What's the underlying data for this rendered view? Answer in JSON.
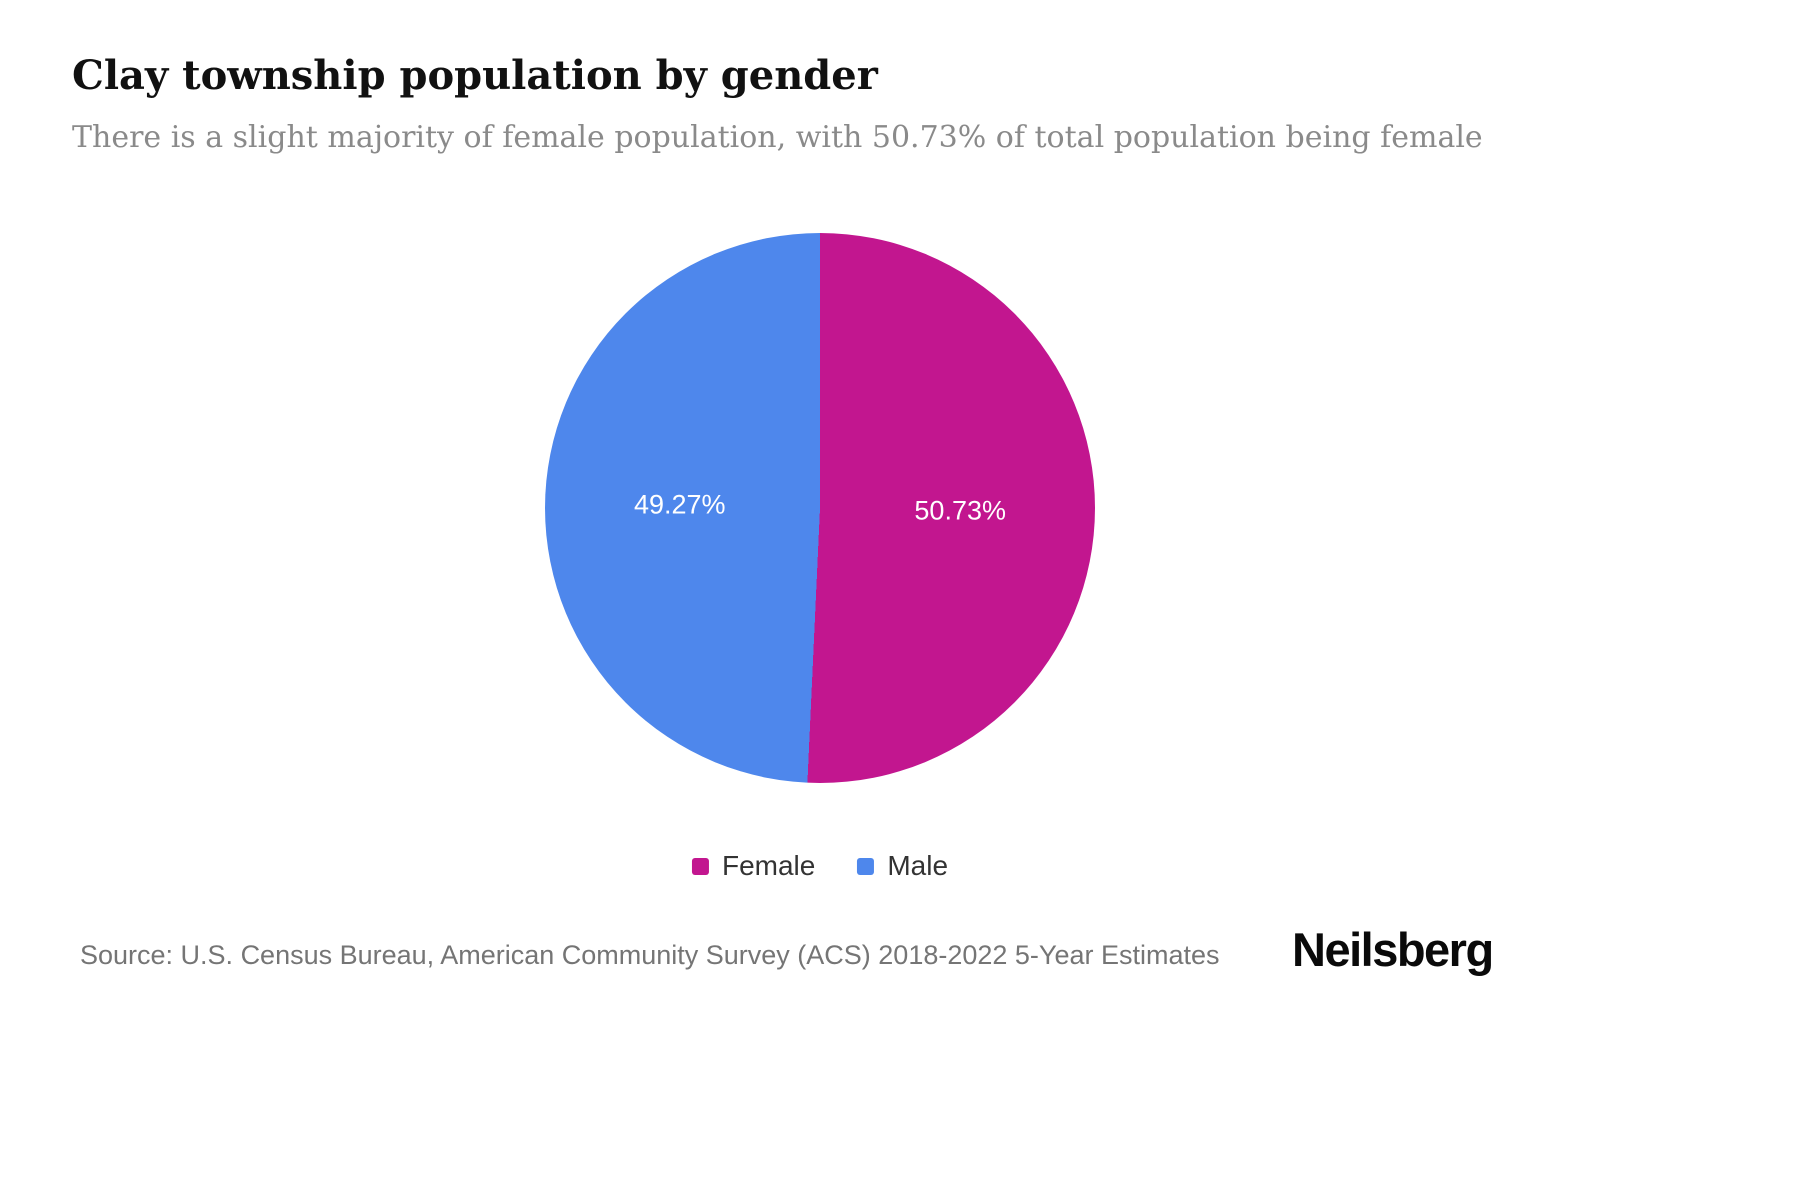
{
  "page": {
    "title": "Clay township population by gender",
    "subtitle": "There is a slight majority of female population, with 50.73% of total population being female",
    "source": "Source: U.S. Census Bureau, American Community Survey (ACS) 2018-2022 5-Year Estimates",
    "brand": "Neilsberg"
  },
  "colors": {
    "female": "#c2168f",
    "male": "#4e87ec",
    "slice_label_text": "#ffffff",
    "background": "#ffffff"
  },
  "chart_data": {
    "type": "pie",
    "title": "Clay township population by gender",
    "start_angle_deg": 0,
    "direction": "clockwise",
    "legend_position": "bottom",
    "slices": [
      {
        "label": "Female",
        "value": 50.73,
        "display": "50.73%",
        "color": "#c2168f"
      },
      {
        "label": "Male",
        "value": 49.27,
        "display": "49.27%",
        "color": "#4e87ec"
      }
    ]
  }
}
